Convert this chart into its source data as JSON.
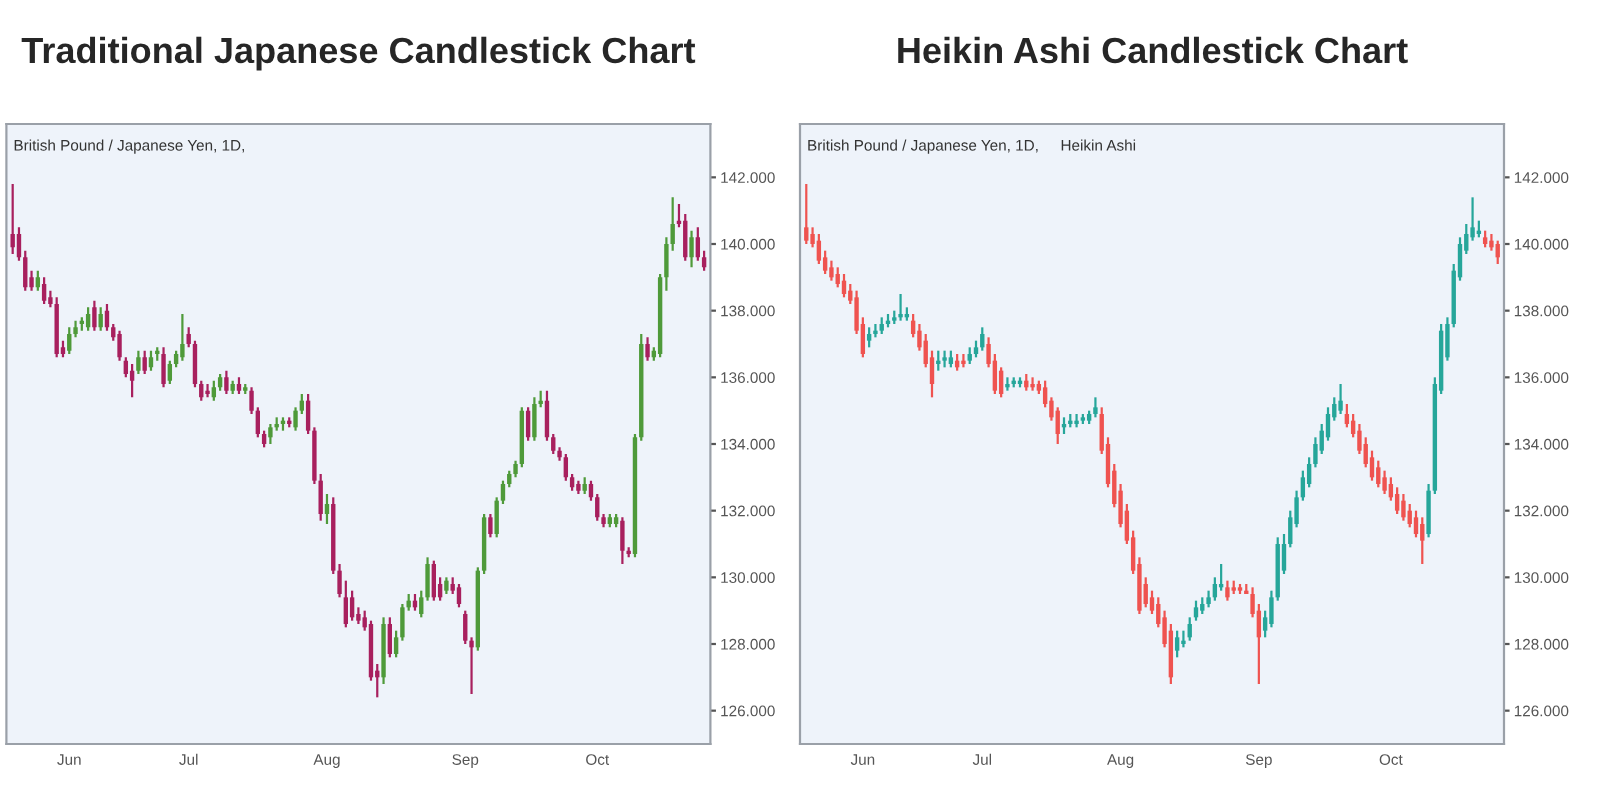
{
  "chart_data": [
    {
      "type": "candlestick",
      "title": "Traditional Japanese Candlestick Chart",
      "annotations": [
        "British Pound / Japanese Yen, 1D,"
      ],
      "categories": [
        null,
        null,
        null,
        null,
        null,
        null,
        null,
        null,
        null,
        "Jun",
        null,
        null,
        null,
        null,
        null,
        null,
        null,
        null,
        null,
        null,
        null,
        null,
        null,
        null,
        null,
        null,
        null,
        null,
        "Jul",
        null,
        null,
        null,
        null,
        null,
        null,
        null,
        null,
        null,
        null,
        null,
        null,
        null,
        null,
        null,
        null,
        null,
        null,
        null,
        null,
        null,
        "Aug",
        null,
        null,
        null,
        null,
        null,
        null,
        null,
        null,
        null,
        null,
        null,
        null,
        null,
        null,
        null,
        null,
        null,
        null,
        null,
        null,
        null,
        "Sep",
        null,
        null,
        null,
        null,
        null,
        null,
        null,
        null,
        null,
        null,
        null,
        null,
        null,
        null,
        null,
        null,
        null,
        null,
        null,
        null,
        "Oct",
        null,
        null,
        null,
        null,
        null,
        null,
        null,
        null,
        null,
        null,
        null,
        null,
        null,
        null,
        null,
        null,
        null
      ],
      "ohlc": [
        [
          140.3,
          141.8,
          139.7,
          139.9
        ],
        [
          140.3,
          140.5,
          139.5,
          139.6
        ],
        [
          139.6,
          139.8,
          138.6,
          138.7
        ],
        [
          139.0,
          139.2,
          138.6,
          138.7
        ],
        [
          138.7,
          139.2,
          138.6,
          139.0
        ],
        [
          138.8,
          139.0,
          138.2,
          138.3
        ],
        [
          138.4,
          138.6,
          138.1,
          138.2
        ],
        [
          138.2,
          138.4,
          136.6,
          136.7
        ],
        [
          136.9,
          137.1,
          136.6,
          136.7
        ],
        [
          136.8,
          137.5,
          136.7,
          137.3
        ],
        [
          137.3,
          137.7,
          137.2,
          137.5
        ],
        [
          137.6,
          137.8,
          137.4,
          137.7
        ],
        [
          137.5,
          138.1,
          137.4,
          137.9
        ],
        [
          138.1,
          138.3,
          137.4,
          137.5
        ],
        [
          137.5,
          138.1,
          137.4,
          137.9
        ],
        [
          138.0,
          138.2,
          137.4,
          137.5
        ],
        [
          137.5,
          137.6,
          137.1,
          137.2
        ],
        [
          137.3,
          137.4,
          136.5,
          136.6
        ],
        [
          136.5,
          136.6,
          136.0,
          136.1
        ],
        [
          136.2,
          136.4,
          135.4,
          135.9
        ],
        [
          136.2,
          136.8,
          136.1,
          136.6
        ],
        [
          136.6,
          136.8,
          136.1,
          136.2
        ],
        [
          136.3,
          136.8,
          136.2,
          136.6
        ],
        [
          136.7,
          136.9,
          136.5,
          136.8
        ],
        [
          136.7,
          136.9,
          135.7,
          135.8
        ],
        [
          135.9,
          136.5,
          135.8,
          136.4
        ],
        [
          136.4,
          136.8,
          136.3,
          136.7
        ],
        [
          136.6,
          137.9,
          136.5,
          137.0
        ],
        [
          137.3,
          137.5,
          136.9,
          137.0
        ],
        [
          137.0,
          137.1,
          135.7,
          135.8
        ],
        [
          135.8,
          135.9,
          135.3,
          135.4
        ],
        [
          135.6,
          135.8,
          135.4,
          135.5
        ],
        [
          135.4,
          135.9,
          135.3,
          135.7
        ],
        [
          135.7,
          136.1,
          135.6,
          136.0
        ],
        [
          136.0,
          136.2,
          135.5,
          135.6
        ],
        [
          135.6,
          135.9,
          135.5,
          135.8
        ],
        [
          135.8,
          136.0,
          135.5,
          135.6
        ],
        [
          135.6,
          135.8,
          135.5,
          135.7
        ],
        [
          135.6,
          135.7,
          134.9,
          135.0
        ],
        [
          135.0,
          135.1,
          134.2,
          134.3
        ],
        [
          134.3,
          134.4,
          133.9,
          134.0
        ],
        [
          134.2,
          134.6,
          134.0,
          134.5
        ],
        [
          134.5,
          134.8,
          134.4,
          134.6
        ],
        [
          134.6,
          134.8,
          134.4,
          134.7
        ],
        [
          134.7,
          134.8,
          134.5,
          134.6
        ],
        [
          134.5,
          135.1,
          134.4,
          135.0
        ],
        [
          135.0,
          135.5,
          134.9,
          135.3
        ],
        [
          135.3,
          135.5,
          134.3,
          134.4
        ],
        [
          134.4,
          134.5,
          132.8,
          132.9
        ],
        [
          132.9,
          133.1,
          131.7,
          131.9
        ],
        [
          131.9,
          132.5,
          131.6,
          132.2
        ],
        [
          132.2,
          132.4,
          130.1,
          130.2
        ],
        [
          130.2,
          130.4,
          129.4,
          129.5
        ],
        [
          129.4,
          129.9,
          128.5,
          128.6
        ],
        [
          129.4,
          129.6,
          128.7,
          128.8
        ],
        [
          128.9,
          129.1,
          128.6,
          128.7
        ],
        [
          128.8,
          129.0,
          128.4,
          128.5
        ],
        [
          128.6,
          128.7,
          126.9,
          127.0
        ],
        [
          127.2,
          127.4,
          126.4,
          127.0
        ],
        [
          127.0,
          128.8,
          126.8,
          128.6
        ],
        [
          128.6,
          128.8,
          127.6,
          127.7
        ],
        [
          127.7,
          128.4,
          127.6,
          128.2
        ],
        [
          128.2,
          129.2,
          128.1,
          129.1
        ],
        [
          129.1,
          129.5,
          129.0,
          129.3
        ],
        [
          129.3,
          129.5,
          129.0,
          129.1
        ],
        [
          128.9,
          129.6,
          128.8,
          129.4
        ],
        [
          129.4,
          130.6,
          129.3,
          130.4
        ],
        [
          130.4,
          130.5,
          129.3,
          129.4
        ],
        [
          129.8,
          130.0,
          129.3,
          129.4
        ],
        [
          129.6,
          130.0,
          129.5,
          129.9
        ],
        [
          129.8,
          130.0,
          129.5,
          129.6
        ],
        [
          129.7,
          129.8,
          129.1,
          129.2
        ],
        [
          128.9,
          129.0,
          128.0,
          128.1
        ],
        [
          128.1,
          128.2,
          126.5,
          127.9
        ],
        [
          127.9,
          130.3,
          127.8,
          130.2
        ],
        [
          130.2,
          131.9,
          130.1,
          131.8
        ],
        [
          131.8,
          131.9,
          131.2,
          131.3
        ],
        [
          131.3,
          132.4,
          131.2,
          132.3
        ],
        [
          132.3,
          132.9,
          132.2,
          132.8
        ],
        [
          132.8,
          133.2,
          132.7,
          133.1
        ],
        [
          133.1,
          133.5,
          133.0,
          133.4
        ],
        [
          133.4,
          135.1,
          133.3,
          135.0
        ],
        [
          135.0,
          135.1,
          134.1,
          134.2
        ],
        [
          134.2,
          135.4,
          134.1,
          135.2
        ],
        [
          135.2,
          135.6,
          135.1,
          135.3
        ],
        [
          135.3,
          135.6,
          134.1,
          134.2
        ],
        [
          134.2,
          134.3,
          133.7,
          133.8
        ],
        [
          133.8,
          133.9,
          133.5,
          133.6
        ],
        [
          133.6,
          133.7,
          132.9,
          133.0
        ],
        [
          133.0,
          133.1,
          132.6,
          132.7
        ],
        [
          132.8,
          132.9,
          132.5,
          132.6
        ],
        [
          132.6,
          133.0,
          132.5,
          132.8
        ],
        [
          132.8,
          132.9,
          132.3,
          132.4
        ],
        [
          132.4,
          132.5,
          131.7,
          131.8
        ],
        [
          131.8,
          131.9,
          131.5,
          131.6
        ],
        [
          131.6,
          131.9,
          131.5,
          131.8
        ],
        [
          131.6,
          131.9,
          131.5,
          131.8
        ],
        [
          131.7,
          131.8,
          130.4,
          130.8
        ],
        [
          130.8,
          130.9,
          130.6,
          130.7
        ],
        [
          130.7,
          134.3,
          130.6,
          134.2
        ],
        [
          134.2,
          137.3,
          134.1,
          137.0
        ],
        [
          137.0,
          137.2,
          136.5,
          136.6
        ],
        [
          136.6,
          136.9,
          136.5,
          136.8
        ],
        [
          136.7,
          139.1,
          136.6,
          139.0
        ],
        [
          139.0,
          140.2,
          138.6,
          140.0
        ],
        [
          140.0,
          141.4,
          139.8,
          140.6
        ],
        [
          140.7,
          141.2,
          140.5,
          140.6
        ],
        [
          140.7,
          140.9,
          139.5,
          139.6
        ],
        [
          139.6,
          140.4,
          139.3,
          140.2
        ],
        [
          140.2,
          140.5,
          139.5,
          139.6
        ],
        [
          139.6,
          139.8,
          139.2,
          139.3
        ]
      ],
      "colors": [
        "#a8205e",
        "#a8205e",
        "#a8205e",
        "#a8205e",
        "#4f9a3a",
        "#a8205e",
        "#a8205e",
        "#a8205e",
        "#a8205e",
        "#4f9a3a",
        "#4f9a3a",
        "#4f9a3a",
        "#4f9a3a",
        "#a8205e",
        "#4f9a3a",
        "#a8205e",
        "#a8205e",
        "#a8205e",
        "#a8205e",
        "#a8205e",
        "#4f9a3a",
        "#a8205e",
        "#4f9a3a",
        "#4f9a3a",
        "#a8205e",
        "#4f9a3a",
        "#4f9a3a",
        "#4f9a3a",
        "#a8205e",
        "#a8205e",
        "#a8205e",
        "#a8205e",
        "#4f9a3a",
        "#4f9a3a",
        "#a8205e",
        "#4f9a3a",
        "#a8205e",
        "#4f9a3a",
        "#a8205e",
        "#a8205e",
        "#a8205e",
        "#4f9a3a",
        "#4f9a3a",
        "#4f9a3a",
        "#a8205e",
        "#4f9a3a",
        "#4f9a3a",
        "#a8205e",
        "#a8205e",
        "#a8205e",
        "#4f9a3a",
        "#a8205e",
        "#a8205e",
        "#a8205e",
        "#a8205e",
        "#a8205e",
        "#a8205e",
        "#a8205e",
        "#a8205e",
        "#4f9a3a",
        "#a8205e",
        "#4f9a3a",
        "#4f9a3a",
        "#4f9a3a",
        "#a8205e",
        "#4f9a3a",
        "#4f9a3a",
        "#a8205e",
        "#a8205e",
        "#4f9a3a",
        "#a8205e",
        "#a8205e",
        "#a8205e",
        "#a8205e",
        "#4f9a3a",
        "#4f9a3a",
        "#a8205e",
        "#4f9a3a",
        "#4f9a3a",
        "#4f9a3a",
        "#4f9a3a",
        "#4f9a3a",
        "#a8205e",
        "#4f9a3a",
        "#4f9a3a",
        "#a8205e",
        "#a8205e",
        "#a8205e",
        "#a8205e",
        "#a8205e",
        "#a8205e",
        "#4f9a3a",
        "#a8205e",
        "#a8205e",
        "#a8205e",
        "#4f9a3a",
        "#4f9a3a",
        "#a8205e",
        "#a8205e",
        "#4f9a3a",
        "#4f9a3a",
        "#a8205e",
        "#4f9a3a",
        "#4f9a3a",
        "#4f9a3a",
        "#4f9a3a",
        "#a8205e",
        "#a8205e",
        "#4f9a3a",
        "#a8205e",
        "#a8205e"
      ],
      "ylim": [
        125.0,
        143.6
      ],
      "yticks": [
        {
          "value": 126,
          "label": "126.000"
        },
        {
          "value": 128,
          "label": "128.000"
        },
        {
          "value": 130,
          "label": "130.000"
        },
        {
          "value": 132,
          "label": "132.000"
        },
        {
          "value": 134,
          "label": "134.000"
        },
        {
          "value": 136,
          "label": "136.000"
        },
        {
          "value": 138,
          "label": "138.000"
        },
        {
          "value": 140,
          "label": "140.000"
        },
        {
          "value": 142,
          "label": "142.000"
        }
      ]
    },
    {
      "type": "candlestick",
      "title": "Heikin Ashi Candlestick Chart",
      "annotations": [
        "British Pound / Japanese Yen, 1D,",
        "Heikin Ashi"
      ],
      "categories": [
        null,
        null,
        null,
        null,
        null,
        null,
        null,
        null,
        null,
        "Jun",
        null,
        null,
        null,
        null,
        null,
        null,
        null,
        null,
        null,
        null,
        null,
        null,
        null,
        null,
        null,
        null,
        null,
        null,
        "Jul",
        null,
        null,
        null,
        null,
        null,
        null,
        null,
        null,
        null,
        null,
        null,
        null,
        null,
        null,
        null,
        null,
        null,
        null,
        null,
        null,
        null,
        "Aug",
        null,
        null,
        null,
        null,
        null,
        null,
        null,
        null,
        null,
        null,
        null,
        null,
        null,
        null,
        null,
        null,
        null,
        null,
        null,
        null,
        null,
        "Sep",
        null,
        null,
        null,
        null,
        null,
        null,
        null,
        null,
        null,
        null,
        null,
        null,
        null,
        null,
        null,
        null,
        null,
        null,
        null,
        null,
        "Oct",
        null,
        null,
        null,
        null,
        null,
        null,
        null,
        null,
        null,
        null,
        null,
        null,
        null,
        null,
        null,
        null,
        null
      ],
      "ohlc": [
        [
          140.5,
          141.8,
          140.0,
          140.1
        ],
        [
          140.3,
          140.5,
          139.9,
          140.0
        ],
        [
          140.1,
          140.3,
          139.4,
          139.5
        ],
        [
          139.6,
          139.8,
          139.1,
          139.2
        ],
        [
          139.3,
          139.5,
          138.9,
          139.0
        ],
        [
          139.1,
          139.3,
          138.7,
          138.8
        ],
        [
          138.9,
          139.1,
          138.4,
          138.5
        ],
        [
          138.6,
          138.8,
          138.2,
          138.3
        ],
        [
          138.4,
          138.6,
          137.3,
          137.4
        ],
        [
          137.6,
          137.8,
          136.6,
          136.7
        ],
        [
          137.1,
          137.5,
          136.9,
          137.3
        ],
        [
          137.3,
          137.6,
          137.2,
          137.4
        ],
        [
          137.4,
          137.8,
          137.3,
          137.6
        ],
        [
          137.6,
          137.9,
          137.5,
          137.7
        ],
        [
          137.7,
          138.0,
          137.6,
          137.8
        ],
        [
          137.8,
          138.5,
          137.7,
          137.9
        ],
        [
          137.8,
          138.1,
          137.7,
          137.9
        ],
        [
          137.7,
          137.9,
          137.2,
          137.3
        ],
        [
          137.4,
          137.6,
          136.8,
          136.9
        ],
        [
          137.1,
          137.3,
          136.3,
          136.4
        ],
        [
          136.6,
          136.8,
          135.4,
          135.8
        ],
        [
          136.4,
          136.8,
          136.2,
          136.5
        ],
        [
          136.5,
          136.8,
          136.3,
          136.6
        ],
        [
          136.4,
          136.8,
          136.3,
          136.6
        ],
        [
          136.5,
          136.7,
          136.2,
          136.3
        ],
        [
          136.5,
          136.7,
          136.3,
          136.4
        ],
        [
          136.5,
          136.9,
          136.4,
          136.7
        ],
        [
          136.7,
          137.1,
          136.6,
          136.9
        ],
        [
          136.9,
          137.5,
          136.8,
          137.3
        ],
        [
          137.0,
          137.2,
          136.3,
          136.4
        ],
        [
          136.5,
          136.7,
          135.5,
          135.6
        ],
        [
          136.2,
          136.3,
          135.4,
          135.5
        ],
        [
          135.7,
          136.0,
          135.6,
          135.8
        ],
        [
          135.8,
          136.0,
          135.7,
          135.9
        ],
        [
          135.8,
          136.0,
          135.7,
          135.9
        ],
        [
          135.9,
          136.1,
          135.6,
          135.7
        ],
        [
          135.8,
          136.0,
          135.6,
          135.7
        ],
        [
          135.8,
          135.9,
          135.5,
          135.6
        ],
        [
          135.7,
          135.9,
          135.1,
          135.2
        ],
        [
          135.3,
          135.4,
          134.7,
          134.8
        ],
        [
          135.0,
          135.1,
          134.0,
          134.3
        ],
        [
          134.5,
          134.8,
          134.3,
          134.6
        ],
        [
          134.6,
          134.9,
          134.5,
          134.7
        ],
        [
          134.6,
          134.9,
          134.5,
          134.7
        ],
        [
          134.7,
          134.9,
          134.6,
          134.8
        ],
        [
          134.7,
          135.0,
          134.6,
          134.9
        ],
        [
          134.9,
          135.4,
          134.8,
          135.1
        ],
        [
          134.9,
          135.1,
          133.7,
          133.8
        ],
        [
          134.0,
          134.2,
          132.7,
          132.8
        ],
        [
          133.2,
          133.4,
          132.1,
          132.2
        ],
        [
          132.6,
          132.8,
          131.5,
          131.6
        ],
        [
          132.0,
          132.2,
          131.0,
          131.1
        ],
        [
          131.2,
          131.4,
          130.1,
          130.2
        ],
        [
          130.4,
          130.6,
          128.9,
          129.0
        ],
        [
          129.8,
          130.0,
          129.1,
          129.2
        ],
        [
          129.4,
          129.6,
          128.9,
          129.0
        ],
        [
          129.2,
          129.4,
          128.5,
          128.6
        ],
        [
          128.8,
          129.0,
          127.9,
          128.0
        ],
        [
          128.4,
          128.6,
          126.8,
          127.0
        ],
        [
          127.8,
          128.4,
          127.6,
          128.2
        ],
        [
          128.0,
          128.4,
          127.9,
          128.1
        ],
        [
          128.2,
          128.8,
          128.1,
          128.6
        ],
        [
          128.8,
          129.3,
          128.7,
          129.1
        ],
        [
          129.0,
          129.4,
          128.9,
          129.2
        ],
        [
          129.2,
          129.6,
          129.1,
          129.4
        ],
        [
          129.4,
          130.0,
          129.3,
          129.8
        ],
        [
          129.7,
          130.4,
          129.6,
          129.8
        ],
        [
          129.7,
          129.9,
          129.3,
          129.4
        ],
        [
          129.7,
          129.9,
          129.5,
          129.6
        ],
        [
          129.7,
          129.8,
          129.5,
          129.6
        ],
        [
          129.6,
          129.8,
          129.5,
          129.5
        ],
        [
          129.5,
          129.7,
          128.8,
          128.9
        ],
        [
          129.0,
          129.2,
          126.8,
          128.2
        ],
        [
          128.4,
          129.0,
          128.2,
          128.8
        ],
        [
          128.6,
          129.6,
          128.5,
          129.4
        ],
        [
          129.4,
          131.2,
          129.3,
          131.0
        ],
        [
          130.2,
          131.3,
          130.1,
          131.0
        ],
        [
          131.0,
          132.0,
          130.9,
          131.8
        ],
        [
          131.6,
          132.6,
          131.5,
          132.4
        ],
        [
          132.4,
          133.2,
          132.3,
          133.0
        ],
        [
          132.8,
          133.6,
          132.7,
          133.4
        ],
        [
          133.4,
          134.2,
          133.3,
          134.0
        ],
        [
          133.8,
          134.6,
          133.7,
          134.4
        ],
        [
          134.2,
          135.1,
          134.1,
          134.9
        ],
        [
          134.8,
          135.4,
          134.7,
          135.2
        ],
        [
          135.0,
          135.8,
          134.9,
          135.3
        ],
        [
          134.9,
          135.2,
          134.5,
          134.6
        ],
        [
          134.7,
          134.9,
          134.2,
          134.3
        ],
        [
          134.4,
          134.6,
          133.7,
          133.8
        ],
        [
          134.0,
          134.2,
          133.3,
          133.4
        ],
        [
          133.6,
          133.8,
          132.9,
          133.0
        ],
        [
          133.3,
          133.5,
          132.7,
          132.8
        ],
        [
          133.0,
          133.2,
          132.5,
          132.6
        ],
        [
          132.8,
          133.0,
          132.3,
          132.4
        ],
        [
          132.5,
          132.7,
          131.9,
          132.0
        ],
        [
          132.3,
          132.5,
          131.7,
          131.8
        ],
        [
          132.0,
          132.2,
          131.5,
          131.6
        ],
        [
          131.8,
          132.0,
          131.2,
          131.3
        ],
        [
          131.6,
          131.8,
          130.4,
          131.1
        ],
        [
          131.3,
          132.8,
          131.2,
          132.6
        ],
        [
          132.6,
          136.0,
          132.5,
          135.8
        ],
        [
          135.6,
          137.6,
          135.5,
          137.4
        ],
        [
          136.6,
          137.8,
          136.5,
          137.6
        ],
        [
          137.6,
          139.4,
          137.5,
          139.2
        ],
        [
          139.0,
          140.2,
          138.9,
          140.0
        ],
        [
          139.8,
          140.6,
          139.7,
          140.3
        ],
        [
          140.2,
          141.4,
          140.1,
          140.5
        ],
        [
          140.3,
          140.7,
          140.2,
          140.4
        ],
        [
          140.2,
          140.4,
          139.9,
          140.0
        ],
        [
          140.1,
          140.3,
          139.8,
          139.9
        ],
        [
          140.0,
          140.1,
          139.4,
          139.6
        ]
      ],
      "colors": [
        "#ef5350",
        "#ef5350",
        "#ef5350",
        "#ef5350",
        "#ef5350",
        "#ef5350",
        "#ef5350",
        "#ef5350",
        "#ef5350",
        "#ef5350",
        "#26a69a",
        "#26a69a",
        "#26a69a",
        "#26a69a",
        "#26a69a",
        "#26a69a",
        "#26a69a",
        "#ef5350",
        "#ef5350",
        "#ef5350",
        "#ef5350",
        "#26a69a",
        "#26a69a",
        "#26a69a",
        "#ef5350",
        "#ef5350",
        "#26a69a",
        "#26a69a",
        "#26a69a",
        "#ef5350",
        "#ef5350",
        "#ef5350",
        "#26a69a",
        "#26a69a",
        "#26a69a",
        "#ef5350",
        "#ef5350",
        "#ef5350",
        "#ef5350",
        "#ef5350",
        "#ef5350",
        "#26a69a",
        "#26a69a",
        "#26a69a",
        "#26a69a",
        "#26a69a",
        "#26a69a",
        "#ef5350",
        "#ef5350",
        "#ef5350",
        "#ef5350",
        "#ef5350",
        "#ef5350",
        "#ef5350",
        "#ef5350",
        "#ef5350",
        "#ef5350",
        "#ef5350",
        "#ef5350",
        "#26a69a",
        "#26a69a",
        "#26a69a",
        "#26a69a",
        "#26a69a",
        "#26a69a",
        "#26a69a",
        "#26a69a",
        "#ef5350",
        "#ef5350",
        "#ef5350",
        "#ef5350",
        "#ef5350",
        "#ef5350",
        "#26a69a",
        "#26a69a",
        "#26a69a",
        "#26a69a",
        "#26a69a",
        "#26a69a",
        "#26a69a",
        "#26a69a",
        "#26a69a",
        "#26a69a",
        "#26a69a",
        "#26a69a",
        "#26a69a",
        "#ef5350",
        "#ef5350",
        "#ef5350",
        "#ef5350",
        "#ef5350",
        "#ef5350",
        "#ef5350",
        "#ef5350",
        "#ef5350",
        "#ef5350",
        "#ef5350",
        "#ef5350",
        "#ef5350",
        "#26a69a",
        "#26a69a",
        "#26a69a",
        "#26a69a",
        "#26a69a",
        "#26a69a",
        "#26a69a",
        "#26a69a",
        "#26a69a",
        "#ef5350",
        "#ef5350",
        "#ef5350"
      ],
      "ylim": [
        125.0,
        143.6
      ],
      "yticks": [
        {
          "value": 126,
          "label": "126.000"
        },
        {
          "value": 128,
          "label": "128.000"
        },
        {
          "value": 130,
          "label": "130.000"
        },
        {
          "value": 132,
          "label": "132.000"
        },
        {
          "value": 134,
          "label": "134.000"
        },
        {
          "value": 136,
          "label": "136.000"
        },
        {
          "value": 138,
          "label": "138.000"
        },
        {
          "value": 140,
          "label": "140.000"
        },
        {
          "value": 142,
          "label": "142.000"
        }
      ]
    }
  ]
}
